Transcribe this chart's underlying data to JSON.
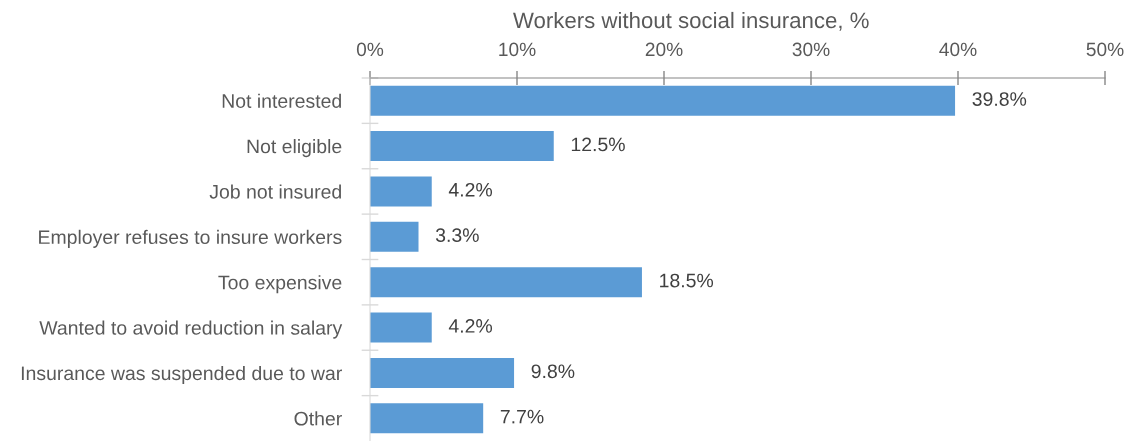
{
  "chart_data": {
    "type": "bar",
    "orientation": "horizontal",
    "xlabel": "Workers without social insurance, %",
    "categories": [
      "Not interested",
      "Not eligible",
      "Job not insured",
      "Employer refuses to insure workers",
      "Too expensive",
      "Wanted to avoid reduction in salary",
      "Insurance was suspended due to war",
      "Other"
    ],
    "values": [
      39.8,
      12.5,
      4.2,
      3.3,
      18.5,
      4.2,
      9.8,
      7.7
    ],
    "value_labels": [
      "39.8%",
      "12.5%",
      "4.2%",
      "3.3%",
      "18.5%",
      "4.2%",
      "9.8%",
      "7.7%"
    ],
    "color": "#5b9bd5",
    "xlim": [
      0,
      50
    ],
    "xticks": [
      {
        "value": 0,
        "label": "0%"
      },
      {
        "value": 10,
        "label": "10%"
      },
      {
        "value": 20,
        "label": "20%"
      },
      {
        "value": 30,
        "label": "30%"
      },
      {
        "value": 40,
        "label": "40%"
      },
      {
        "value": 50,
        "label": "50%"
      }
    ],
    "grid": false,
    "legend": false
  }
}
